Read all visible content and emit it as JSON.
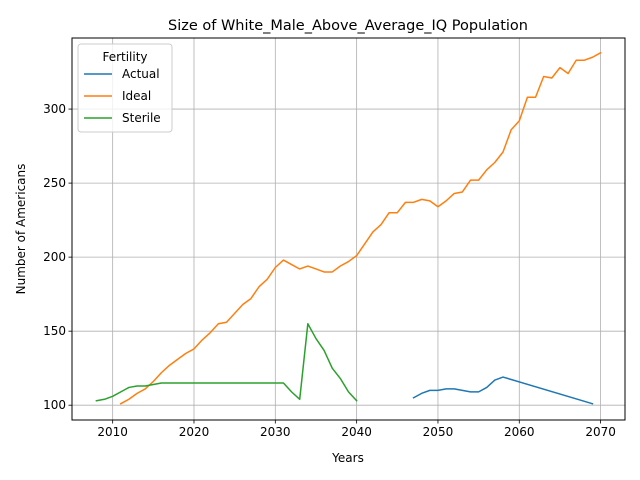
{
  "chart_data": {
    "type": "line",
    "title": "Size of White_Male_Above_Average_IQ Population",
    "xlabel": "Years",
    "ylabel": "Number of Americans",
    "xlim": [
      2005,
      2073
    ],
    "ylim": [
      90,
      348
    ],
    "xticks": [
      2010,
      2020,
      2030,
      2040,
      2050,
      2060,
      2070
    ],
    "yticks": [
      100,
      150,
      200,
      250,
      300
    ],
    "grid": true,
    "legend": {
      "title": "Fertility",
      "placement": "top-left"
    },
    "series": [
      {
        "name": "Actual",
        "color": "#1f77b4",
        "x": [
          2047,
          2048,
          2049,
          2050,
          2051,
          2052,
          2053,
          2054,
          2055,
          2056,
          2057,
          2058,
          2069
        ],
        "y": [
          105,
          108,
          110,
          110,
          111,
          111,
          110,
          109,
          109,
          112,
          117,
          119,
          101
        ]
      },
      {
        "name": "Ideal",
        "color": "#ff7f0e",
        "x": [
          2011,
          2012,
          2013,
          2014,
          2015,
          2016,
          2017,
          2018,
          2019,
          2020,
          2021,
          2022,
          2023,
          2024,
          2025,
          2026,
          2027,
          2028,
          2029,
          2030,
          2031,
          2032,
          2033,
          2034,
          2035,
          2036,
          2037,
          2038,
          2039,
          2040,
          2041,
          2042,
          2043,
          2044,
          2045,
          2046,
          2047,
          2048,
          2049,
          2050,
          2051,
          2052,
          2053,
          2054,
          2055,
          2056,
          2057,
          2058,
          2059,
          2060,
          2061,
          2062,
          2063,
          2064,
          2065,
          2066,
          2067,
          2068,
          2069,
          2070
        ],
        "y": [
          101,
          104,
          108,
          111,
          116,
          122,
          127,
          131,
          135,
          138,
          144,
          149,
          155,
          156,
          162,
          168,
          172,
          180,
          185,
          193,
          198,
          195,
          192,
          194,
          192,
          190,
          190,
          194,
          197,
          201,
          209,
          217,
          222,
          230,
          230,
          237,
          237,
          239,
          238,
          234,
          238,
          243,
          244,
          252,
          252,
          259,
          264,
          271,
          286,
          292,
          308,
          308,
          322,
          321,
          328,
          324,
          333,
          333,
          335,
          338
        ]
      },
      {
        "name": "Sterile",
        "color": "#2ca02c",
        "x": [
          2008,
          2009,
          2010,
          2011,
          2012,
          2013,
          2014,
          2015,
          2016,
          2017,
          2018,
          2019,
          2020,
          2021,
          2022,
          2023,
          2024,
          2025,
          2026,
          2027,
          2028,
          2029,
          2030,
          2031,
          2032,
          2033,
          2034,
          2035,
          2036,
          2037,
          2038,
          2039,
          2040
        ],
        "y": [
          103,
          104,
          106,
          109,
          112,
          113,
          113,
          114,
          115,
          115,
          115,
          115,
          115,
          115,
          115,
          115,
          115,
          115,
          115,
          115,
          115,
          115,
          115,
          115,
          109,
          104,
          155,
          145,
          137,
          125,
          118,
          109,
          103
        ]
      }
    ]
  }
}
